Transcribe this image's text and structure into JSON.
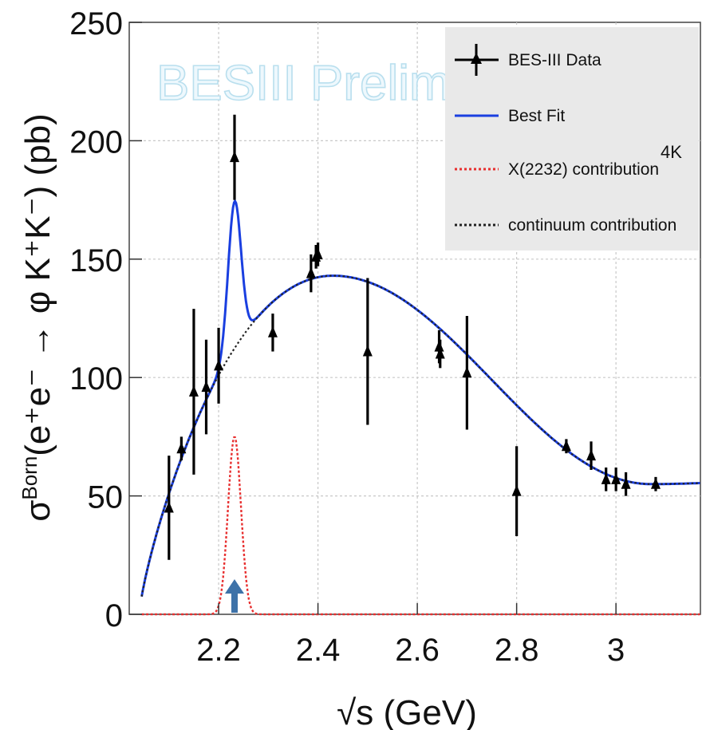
{
  "chart_data": {
    "type": "scatter",
    "watermark": "BESIII Preliminary",
    "annotation": "4K",
    "xlabel": "√s (GeV)",
    "ylabel_parts": {
      "main": "σ",
      "sup": "Born",
      "reaction": "(e⁺e⁻ → φ K⁺K⁻) (pb)"
    },
    "xlim": [
      2.02,
      3.17
    ],
    "ylim": [
      0,
      250
    ],
    "x_ticks": [
      2.2,
      2.4,
      2.6,
      2.8,
      3.0
    ],
    "x_tick_labels": [
      "2.2",
      "2.4",
      "2.6",
      "2.8",
      "3"
    ],
    "y_ticks": [
      0,
      50,
      100,
      150,
      200,
      250
    ],
    "y_tick_labels": [
      "0",
      "50",
      "100",
      "150",
      "200",
      "250"
    ],
    "grid": true,
    "legend_position": "top-right",
    "legend": [
      {
        "label": "BES-III Data",
        "style": "marker"
      },
      {
        "label": "Best Fit",
        "style": "solid",
        "color": "#1a3fe0"
      },
      {
        "label": "X(2232) contribution",
        "style": "dotted",
        "color": "#e83030"
      },
      {
        "label": "continuum contribution",
        "style": "dotted",
        "color": "#222222"
      }
    ],
    "series": [
      {
        "name": "BES-III Data",
        "points": [
          {
            "x": 2.1,
            "y": 45,
            "err": 22
          },
          {
            "x": 2.125,
            "y": 70,
            "err": 5
          },
          {
            "x": 2.15,
            "y": 94,
            "err": 35
          },
          {
            "x": 2.175,
            "y": 96,
            "err": 20
          },
          {
            "x": 2.2,
            "y": 105,
            "err": 16
          },
          {
            "x": 2.232,
            "y": 193,
            "err": 18
          },
          {
            "x": 2.309,
            "y": 119,
            "err": 8
          },
          {
            "x": 2.386,
            "y": 144,
            "err": 8
          },
          {
            "x": 2.396,
            "y": 151,
            "err": 5
          },
          {
            "x": 2.4,
            "y": 152,
            "err": 5
          },
          {
            "x": 2.5,
            "y": 111,
            "err": 31
          },
          {
            "x": 2.644,
            "y": 113,
            "err": 7
          },
          {
            "x": 2.646,
            "y": 110,
            "err": 6
          },
          {
            "x": 2.7,
            "y": 102,
            "err": 24
          },
          {
            "x": 2.8,
            "y": 52,
            "err": 19
          },
          {
            "x": 2.9,
            "y": 71,
            "err": 3
          },
          {
            "x": 2.95,
            "y": 67,
            "err": 6
          },
          {
            "x": 2.98,
            "y": 57,
            "err": 5
          },
          {
            "x": 3.0,
            "y": 57,
            "err": 5
          },
          {
            "x": 3.02,
            "y": 55,
            "err": 5
          },
          {
            "x": 3.08,
            "y": 55,
            "err": 3
          }
        ]
      }
    ],
    "model": {
      "continuum": {
        "x0": 2.04,
        "peak_x": 2.43,
        "peak_y": 143,
        "min_x": 3.07,
        "min_y": 55
      },
      "resonance": {
        "name": "X(2232)",
        "mass": 2.232,
        "amplitude_fit": 62,
        "amplitude_contribution": 75,
        "width": 0.013
      }
    },
    "arrow_marker_x": 2.232,
    "colors": {
      "fit": "#1a3fe0",
      "resonance": "#e83030",
      "continuum": "#222222",
      "grid": "#c8c8c8",
      "arrow": "#3e72a8",
      "legend_bg": "#e9e9e9"
    }
  }
}
